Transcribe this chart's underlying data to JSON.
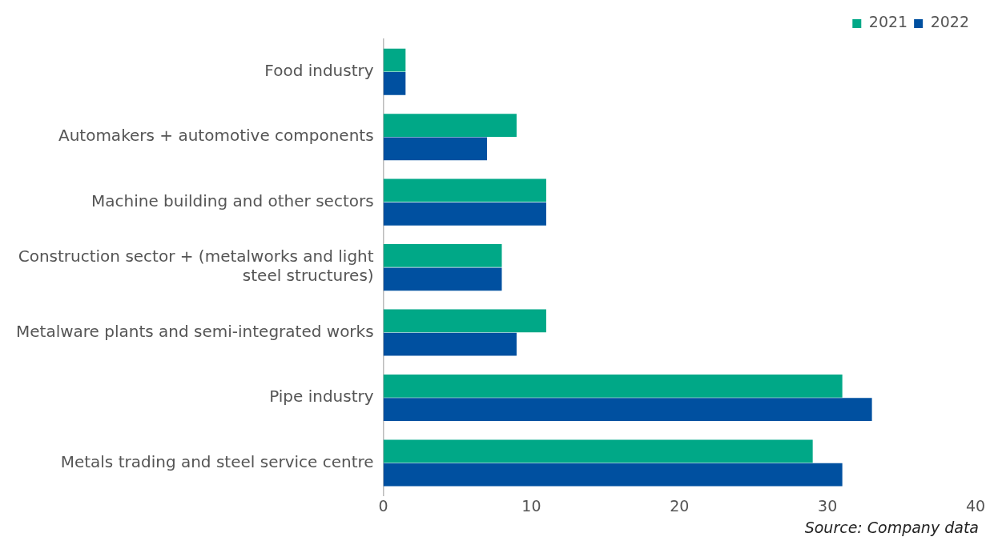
{
  "chart_data": {
    "type": "bar",
    "orientation": "horizontal",
    "categories": [
      "Food industry",
      "Automakers + automotive components",
      "Machine building and other sectors",
      "Construction sector + (metalworks and light steel structures)",
      "Metalware plants and semi-integrated works",
      "Pipe industry",
      "Metals trading and steel service centre"
    ],
    "series": [
      {
        "name": "2021",
        "color": "#00a887",
        "values": [
          1.5,
          9,
          11,
          8,
          11,
          31,
          29
        ]
      },
      {
        "name": "2022",
        "color": "#0050a0",
        "values": [
          1.5,
          7,
          11,
          8,
          9,
          33,
          31
        ]
      }
    ],
    "xlim": [
      0,
      40
    ],
    "xticks": [
      0,
      10,
      20,
      30,
      40
    ],
    "grid": false,
    "legend": "top right",
    "annotations": [
      "Source: Company data"
    ]
  }
}
